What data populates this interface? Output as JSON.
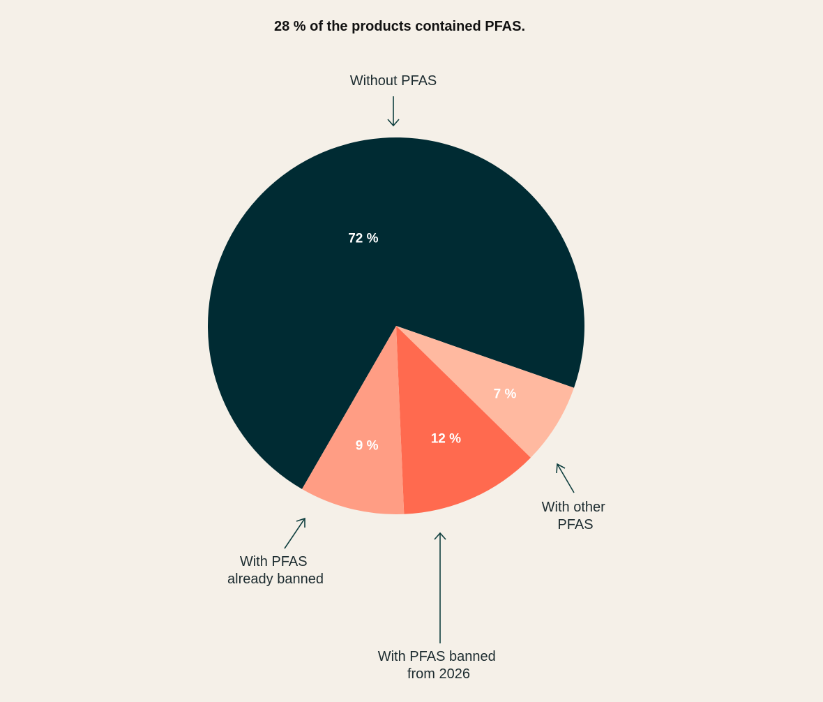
{
  "chart_data": {
    "type": "pie",
    "title": "28 % of the products contained PFAS.",
    "slices": [
      {
        "name": "Without PFAS",
        "value": 72,
        "label": "72 %",
        "color": "#002b33"
      },
      {
        "name": "With other PFAS",
        "value": 7,
        "label": "7 %",
        "color": "#ffb9a0"
      },
      {
        "name": "With PFAS banned from 2026",
        "value": 12,
        "label": "12 %",
        "color": "#ff6a4f"
      },
      {
        "name": "With PFAS already banned",
        "value": 9,
        "label": "9 %",
        "color": "#ff9d84"
      }
    ],
    "start_angle_deg": 120,
    "legend": "none"
  },
  "colors": {
    "background": "#f5f0e8",
    "arrow": "#0e3e3e"
  }
}
